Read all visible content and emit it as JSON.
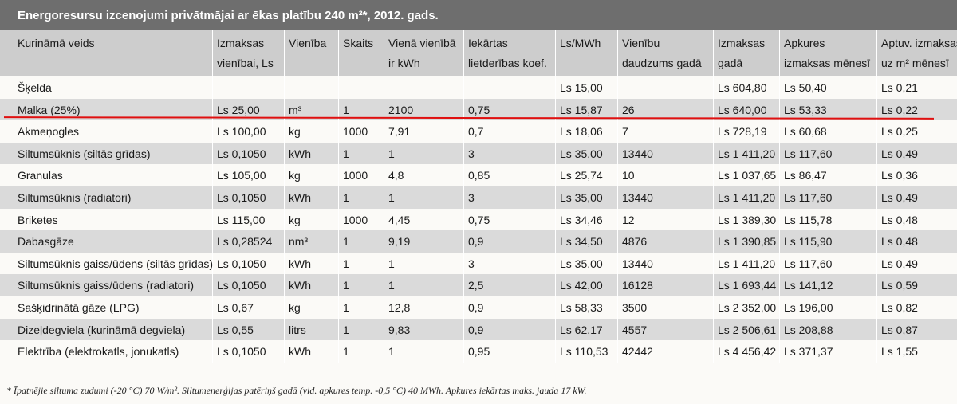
{
  "title": "Energoresursu izcenojumi privātmājai ar ēkas platību 240 m²*, 2012. gads.",
  "table": {
    "columns": [
      [
        "Kurināmā veids"
      ],
      [
        "Izmaksas",
        "vienībai, Ls"
      ],
      [
        "Vienība"
      ],
      [
        "Skaits"
      ],
      [
        "Vienā vienībā",
        "ir kWh"
      ],
      [
        "Iekārtas",
        "lietderības koef."
      ],
      [
        "Ls/MWh"
      ],
      [
        "Vienību",
        "daudzums gadā"
      ],
      [
        "Izmaksas",
        "gadā"
      ],
      [
        "Apkures",
        "izmaksas mēnesī"
      ],
      [
        "Aptuv. izmaksas",
        "uz m² mēnesī"
      ]
    ],
    "rows": [
      [
        "Šķelda",
        null,
        null,
        null,
        null,
        null,
        "Ls 15,00",
        null,
        "Ls 604,80",
        "Ls 50,40",
        "Ls 0,21"
      ],
      [
        "Malka (25%)",
        "Ls 25,00",
        "m³",
        "1",
        "2100",
        "0,75",
        "Ls 15,87",
        "26",
        "Ls 640,00",
        "Ls 53,33",
        "Ls 0,22"
      ],
      [
        "Akmeņogles",
        "Ls 100,00",
        "kg",
        "1000",
        "7,91",
        "0,7",
        "Ls 18,06",
        "7",
        "Ls 728,19",
        "Ls 60,68",
        "Ls 0,25"
      ],
      [
        "Siltumsūknis (siltās grīdas)",
        "Ls 0,1050",
        "kWh",
        "1",
        "1",
        "3",
        "Ls 35,00",
        "13440",
        "Ls 1 411,20",
        "Ls 117,60",
        "Ls 0,49"
      ],
      [
        "Granulas",
        "Ls 105,00",
        "kg",
        "1000",
        "4,8",
        "0,85",
        "Ls 25,74",
        "10",
        "Ls 1 037,65",
        "Ls 86,47",
        "Ls 0,36"
      ],
      [
        "Siltumsūknis (radiatori)",
        "Ls 0,1050",
        "kWh",
        "1",
        "1",
        "3",
        "Ls 35,00",
        "13440",
        "Ls 1 411,20",
        "Ls 117,60",
        "Ls 0,49"
      ],
      [
        "Briketes",
        "Ls 115,00",
        "kg",
        "1000",
        "4,45",
        "0,75",
        "Ls 34,46",
        "12",
        "Ls 1 389,30",
        "Ls 115,78",
        "Ls 0,48"
      ],
      [
        "Dabasgāze",
        "Ls 0,28524",
        "nm³",
        "1",
        "9,19",
        "0,9",
        "Ls 34,50",
        "4876",
        "Ls 1 390,85",
        "Ls 115,90",
        "Ls 0,48"
      ],
      [
        "Siltumsūknis gaiss/ūdens (siltās grīdas)",
        "Ls 0,1050",
        "kWh",
        "1",
        "1",
        "3",
        "Ls 35,00",
        "13440",
        "Ls 1 411,20",
        "Ls 117,60",
        "Ls 0,49"
      ],
      [
        "Siltumsūknis gaiss/ūdens (radiatori)",
        "Ls 0,1050",
        "kWh",
        "1",
        "1",
        "2,5",
        "Ls 42,00",
        "16128",
        "Ls 1 693,44",
        "Ls 141,12",
        "Ls 0,59"
      ],
      [
        "Sašķidrinātā gāze (LPG)",
        "Ls 0,67",
        "kg",
        "1",
        "12,8",
        "0,9",
        "Ls 58,33",
        "3500",
        "Ls 2 352,00",
        "Ls 196,00",
        "Ls 0,82"
      ],
      [
        "Dizeļdegviela (kurināmā degviela)",
        "Ls 0,55",
        "litrs",
        "1",
        "9,83",
        "0,9",
        "Ls 62,17",
        "4557",
        "Ls 2 506,61",
        "Ls 208,88",
        "Ls 0,87"
      ],
      [
        "Elektrība (elektrokatls, jonukatls)",
        "Ls 0,1050",
        "kWh",
        "1",
        "1",
        "0,95",
        "Ls 110,53",
        "42442",
        "Ls 4 456,42",
        "Ls 371,37",
        "Ls 1,55"
      ]
    ]
  },
  "footnote": "* Īpatnējie siltuma zudumi (-20 °C) 70 W/m². Siltumenerģijas patēriņš gadā (vid. apkures temp. -0,5 °C) 40 MWh. Apkures iekārtas maks. jauda 17 kW."
}
